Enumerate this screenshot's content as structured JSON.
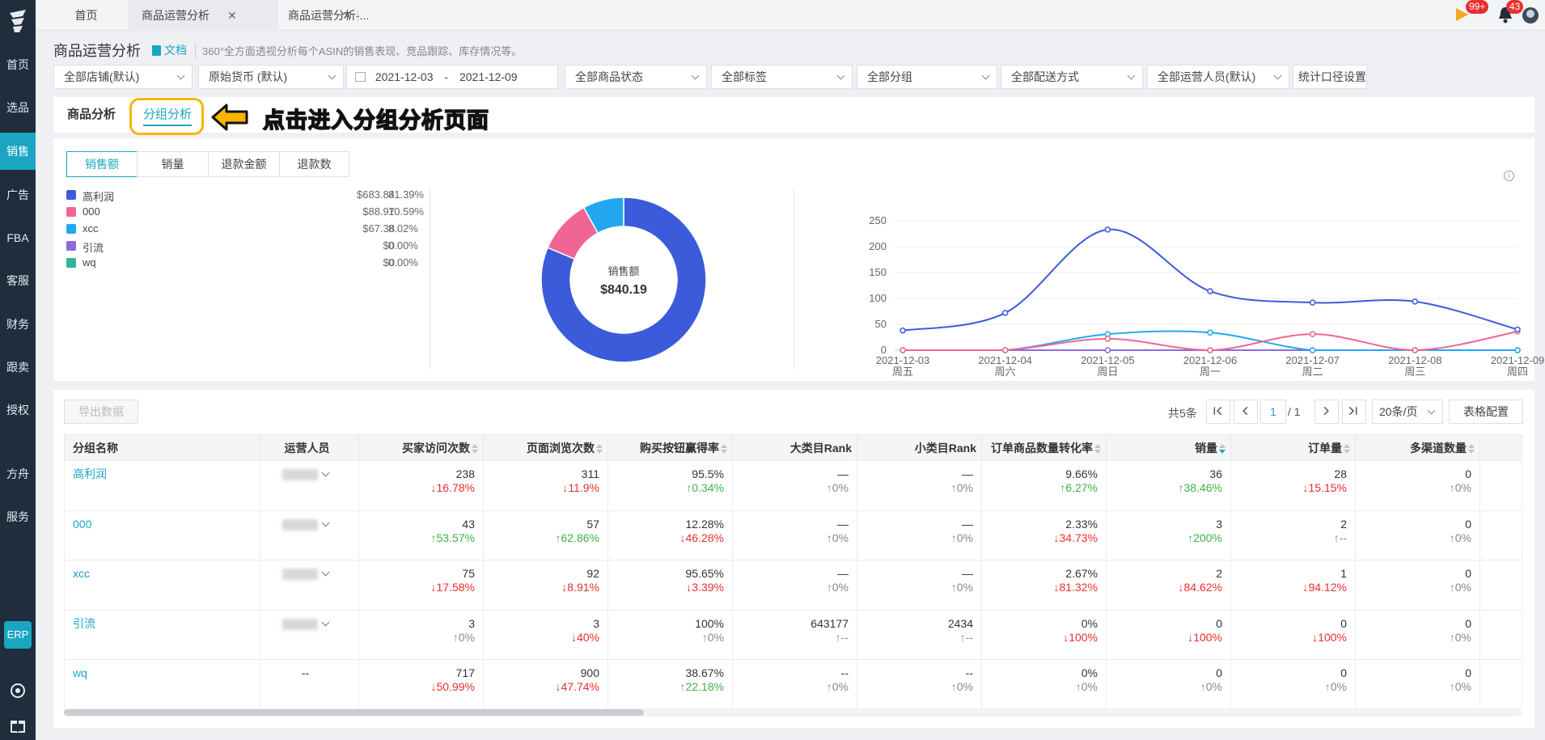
{
  "sidebar": {
    "items": [
      "首页",
      "选品",
      "销售",
      "广告",
      "FBA",
      "客服",
      "财务",
      "跟卖",
      "授权",
      "方舟",
      "服务"
    ],
    "active": 2,
    "erp": "ERP"
  },
  "tabbar": {
    "tabs": [
      "首页",
      "商品运营分析",
      "商品运营分析-..."
    ],
    "notif_flag": "99+",
    "notif_bell": "43"
  },
  "header": {
    "title": "商品运营分析",
    "doc_link": "文档",
    "description": "360°全方面透视分析每个ASIN的销售表现、竞品跟踪、库存情况等。"
  },
  "filters": {
    "store": "全部店铺(默认)",
    "currency": "原始货币 (默认)",
    "date_from": "2021-12-03",
    "date_sep": "-",
    "date_to": "2021-12-09",
    "status": "全部商品状态",
    "tags": "全部标签",
    "group": "全部分组",
    "shipping": "全部配送方式",
    "operator": "全部运营人员(默认)",
    "stat_settings": "统计口径设置"
  },
  "subtabs": {
    "product": "商品分析",
    "group": "分组分析"
  },
  "annotation": {
    "text": "点击进入分组分析页面",
    "arrow": "arrow-left-icon",
    "color": "#ffb300"
  },
  "metric_tabs": [
    "销售额",
    "销量",
    "退款金额",
    "退款数"
  ],
  "colors": {
    "accent": "#1aa6c2",
    "up": "#3fb24b",
    "down": "#e8302f"
  },
  "chart_data": [
    {
      "type": "pie",
      "donut": true,
      "center_label": "销售额",
      "center_value": "$840.19",
      "slices": [
        {
          "name": "高利润",
          "amount": "$683.84",
          "percent": "81.39%",
          "value": 683.84,
          "color": "#3b5bdb"
        },
        {
          "name": "000",
          "amount": "$88.97",
          "percent": "10.59%",
          "value": 88.97,
          "color": "#f06595"
        },
        {
          "name": "xcc",
          "amount": "$67.38",
          "percent": "8.02%",
          "value": 67.38,
          "color": "#22a7f0"
        },
        {
          "name": "引流",
          "amount": "$0",
          "percent": "0.00%",
          "value": 0,
          "color": "#8e6bdb"
        },
        {
          "name": "wq",
          "amount": "$0",
          "percent": "0.00%",
          "value": 0,
          "color": "#2fb59b"
        }
      ]
    },
    {
      "type": "line",
      "smooth": true,
      "x": [
        "2021-12-03",
        "2021-12-04",
        "2021-12-05",
        "2021-12-06",
        "2021-12-07",
        "2021-12-08",
        "2021-12-09"
      ],
      "x2": [
        "周五",
        "周六",
        "周日",
        "周一",
        "周二",
        "周三",
        "周四"
      ],
      "ylim": [
        0,
        250
      ],
      "yticks": [
        0,
        50,
        100,
        150,
        200,
        250
      ],
      "series": [
        {
          "name": "高利润",
          "color": "#3b5bdb",
          "values": [
            38,
            72,
            233,
            114,
            92,
            94,
            40
          ]
        },
        {
          "name": "000",
          "color": "#f06595",
          "values": [
            0,
            0,
            22,
            0,
            31,
            0,
            36
          ]
        },
        {
          "name": "xcc",
          "color": "#22a7f0",
          "values": [
            0,
            0,
            31,
            34,
            0,
            0,
            0
          ]
        },
        {
          "name": "引流",
          "color": "#8e6bdb",
          "values": [
            0,
            0,
            0,
            0,
            0,
            0,
            0
          ]
        },
        {
          "name": "wq",
          "color": "#2fb59b",
          "values": [
            0,
            0,
            0,
            0,
            0,
            0,
            0
          ]
        }
      ]
    }
  ],
  "table_toolbar": {
    "export": "导出数据",
    "total": "共5条",
    "page": "1",
    "page_total": "/ 1",
    "page_size": "20条/页",
    "config": "表格配置"
  },
  "table": {
    "columns": [
      "分组名称",
      "运营人员",
      "买家访问次数",
      "页面浏览次数",
      "购买按钮赢得率",
      "大类目Rank",
      "小类目Rank",
      "订单商品数量转化率",
      "销量",
      "订单量",
      "多渠道数量"
    ],
    "rows": [
      {
        "name": "高利润",
        "operator": "blurred",
        "cells": [
          [
            "238",
            "↓16.78%",
            "dn"
          ],
          [
            "311",
            "↓11.9%",
            "dn"
          ],
          [
            "95.5%",
            "↑0.34%",
            "up"
          ],
          [
            "—",
            "↑0%",
            "nc"
          ],
          [
            "—",
            "↑0%",
            "nc"
          ],
          [
            "9.66%",
            "↑6.27%",
            "up"
          ],
          [
            "36",
            "↑38.46%",
            "up"
          ],
          [
            "28",
            "↓15.15%",
            "dn"
          ],
          [
            "0",
            "↑0%",
            "nc"
          ]
        ]
      },
      {
        "name": "000",
        "operator": "blurred",
        "cells": [
          [
            "43",
            "↑53.57%",
            "up"
          ],
          [
            "57",
            "↑62.86%",
            "up"
          ],
          [
            "12.28%",
            "↓46.28%",
            "dn"
          ],
          [
            "—",
            "↑0%",
            "nc"
          ],
          [
            "—",
            "↑0%",
            "nc"
          ],
          [
            "2.33%",
            "↓34.73%",
            "dn"
          ],
          [
            "3",
            "↑200%",
            "up"
          ],
          [
            "2",
            "↑--",
            "nc"
          ],
          [
            "0",
            "↑0%",
            "nc"
          ]
        ]
      },
      {
        "name": "xcc",
        "operator": "blurred",
        "cells": [
          [
            "75",
            "↓17.58%",
            "dn"
          ],
          [
            "92",
            "↓8.91%",
            "dn"
          ],
          [
            "95.65%",
            "↓3.39%",
            "dn"
          ],
          [
            "—",
            "↑0%",
            "nc"
          ],
          [
            "—",
            "↑0%",
            "nc"
          ],
          [
            "2.67%",
            "↓81.32%",
            "dn"
          ],
          [
            "2",
            "↓84.62%",
            "dn"
          ],
          [
            "1",
            "↓94.12%",
            "dn"
          ],
          [
            "0",
            "↑0%",
            "nc"
          ]
        ]
      },
      {
        "name": "引流",
        "operator": "blurred",
        "cells": [
          [
            "3",
            "↑0%",
            "nc"
          ],
          [
            "3",
            "↓40%",
            "dn"
          ],
          [
            "100%",
            "↑0%",
            "nc"
          ],
          [
            "643177",
            "↑--",
            "nc"
          ],
          [
            "2434",
            "↑--",
            "nc"
          ],
          [
            "0%",
            "↓100%",
            "dn"
          ],
          [
            "0",
            "↓100%",
            "dn"
          ],
          [
            "0",
            "↓100%",
            "dn"
          ],
          [
            "0",
            "↑0%",
            "nc"
          ]
        ]
      },
      {
        "name": "wq",
        "operator": "--",
        "cells": [
          [
            "717",
            "↓50.99%",
            "dn"
          ],
          [
            "900",
            "↓47.74%",
            "dn"
          ],
          [
            "38.67%",
            "↑22.18%",
            "up"
          ],
          [
            "--",
            "↑0%",
            "nc"
          ],
          [
            "--",
            "↑0%",
            "nc"
          ],
          [
            "0%",
            "↑0%",
            "nc"
          ],
          [
            "0",
            "↑0%",
            "nc"
          ],
          [
            "0",
            "↑0%",
            "nc"
          ],
          [
            "0",
            "↑0%",
            "nc"
          ]
        ]
      }
    ]
  }
}
